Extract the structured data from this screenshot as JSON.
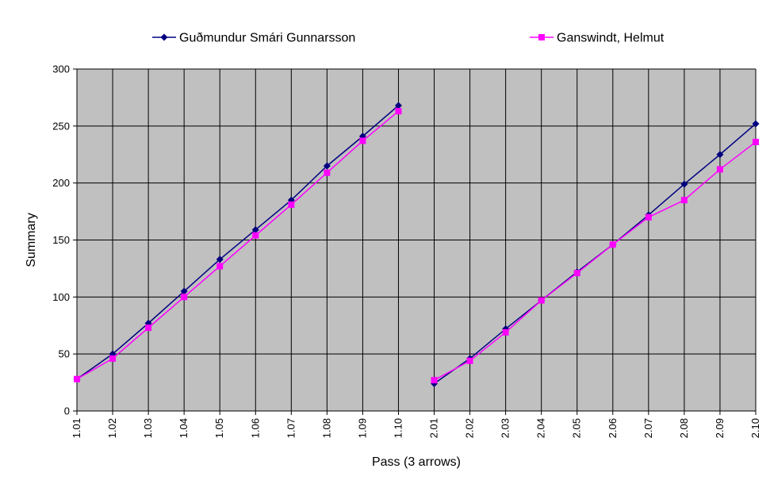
{
  "chart_data": {
    "type": "line",
    "title": "",
    "xlabel": "Pass (3 arrows)",
    "ylabel": "Summary",
    "ylim": [
      0,
      300
    ],
    "yticks": [
      0,
      50,
      100,
      150,
      200,
      250,
      300
    ],
    "categories": [
      "1.01",
      "1.02",
      "1.03",
      "1.04",
      "1.05",
      "1.06",
      "1.07",
      "1.08",
      "1.09",
      "1.10",
      "2.01",
      "2.02",
      "2.03",
      "2.04",
      "2.05",
      "2.06",
      "2.07",
      "2.08",
      "2.09",
      "2.10"
    ],
    "grid": true,
    "plot_background": "#c0c0c0",
    "legend_position": "top",
    "series": [
      {
        "name": "Guðmundur Smári Gunnarsson",
        "color": "#000080",
        "marker": "diamond",
        "values": [
          28,
          50,
          77,
          105,
          133,
          159,
          185,
          215,
          241,
          268,
          24,
          46,
          72,
          97,
          122,
          146,
          172,
          199,
          225,
          252
        ]
      },
      {
        "name": "Ganswindt, Helmut",
        "color": "#ff00ff",
        "marker": "square",
        "values": [
          28,
          46,
          73,
          100,
          127,
          154,
          181,
          209,
          237,
          263,
          27,
          44,
          69,
          97,
          121,
          146,
          170,
          185,
          212,
          236
        ]
      }
    ],
    "series_breaks_after": [
      "1.10"
    ]
  }
}
